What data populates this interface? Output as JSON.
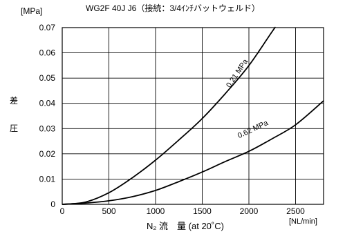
{
  "chart_data": {
    "type": "line",
    "title": "WG2F 40J J6（接続：3/4ｲﾝﾁバットウェルド）",
    "ylabel_unit": "[MPa]",
    "ylabel_chars": [
      "差",
      "圧"
    ],
    "xlabel": "N₂ 流　量 (at 20˚C)",
    "xlabel_unit": "[NL/min]",
    "xlim": [
      0,
      2800
    ],
    "ylim": [
      0,
      0.07
    ],
    "x_ticks": [
      0,
      500,
      1000,
      1500,
      2000,
      2500
    ],
    "x_tick_labels": [
      "0",
      "500",
      "1000",
      "1500",
      "2000",
      "2500"
    ],
    "y_ticks": [
      0,
      0.01,
      0.02,
      0.03,
      0.04,
      0.05,
      0.06,
      0.07
    ],
    "y_tick_labels": [
      "0",
      "0.01",
      "0.02",
      "0.03",
      "0.04",
      "0.05",
      "0.06",
      "0.07"
    ],
    "grid": true,
    "legend": "none",
    "series": [
      {
        "name": "0.21 MPa",
        "x": [
          0,
          250,
          500,
          750,
          1000,
          1250,
          1500,
          1750,
          2000,
          2250,
          2280
        ],
        "y": [
          0,
          0.0009,
          0.0046,
          0.0105,
          0.0175,
          0.0255,
          0.034,
          0.044,
          0.055,
          0.0685,
          0.07
        ]
      },
      {
        "name": "0.62 MPa",
        "x": [
          0,
          250,
          500,
          750,
          1000,
          1250,
          1500,
          1750,
          2000,
          2250,
          2500,
          2800
        ],
        "y": [
          0,
          0.0005,
          0.0014,
          0.003,
          0.0055,
          0.009,
          0.0128,
          0.017,
          0.021,
          0.026,
          0.0315,
          0.041
        ]
      }
    ]
  }
}
